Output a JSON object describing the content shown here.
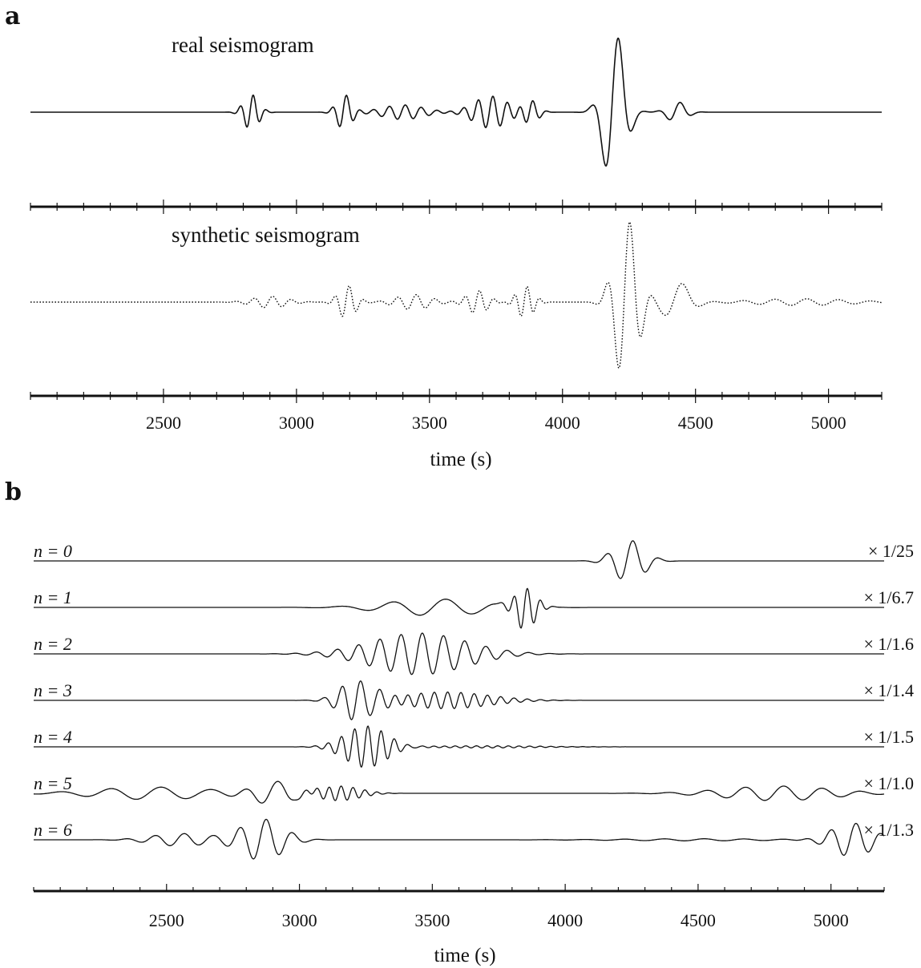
{
  "chart_data": [
    {
      "panel": "a",
      "type": "line",
      "xlabel": "time (s)",
      "xlim": [
        2000,
        5200
      ],
      "xticks": [
        2500,
        3000,
        3500,
        4000,
        4500,
        5000
      ],
      "series": [
        {
          "name": "real seismogram",
          "style": "solid",
          "packets": [
            {
              "t": 2830,
              "amp": 0.22,
              "period": 50,
              "width": 40
            },
            {
              "t": 3180,
              "amp": 0.22,
              "period": 55,
              "width": 40
            },
            {
              "t": 3400,
              "amp": 0.09,
              "period": 60,
              "width": 110
            },
            {
              "t": 3730,
              "amp": 0.2,
              "period": 55,
              "width": 90
            },
            {
              "t": 3880,
              "amp": 0.15,
              "period": 55,
              "width": 40
            },
            {
              "t": 4195,
              "amp": 1.0,
              "period": 110,
              "width": 55
            },
            {
              "t": 4430,
              "amp": 0.13,
              "period": 90,
              "width": 50
            }
          ]
        },
        {
          "name": "synthetic seismogram",
          "style": "dotted",
          "packets": [
            {
              "t": 2900,
              "amp": 0.07,
              "period": 70,
              "width": 90
            },
            {
              "t": 3190,
              "amp": 0.2,
              "period": 55,
              "width": 45
            },
            {
              "t": 3440,
              "amp": 0.09,
              "period": 70,
              "width": 90
            },
            {
              "t": 3680,
              "amp": 0.14,
              "period": 55,
              "width": 55
            },
            {
              "t": 3860,
              "amp": 0.19,
              "period": 48,
              "width": 45
            },
            {
              "t": 4240,
              "amp": 1.0,
              "period": 90,
              "width": 60
            },
            {
              "t": 4430,
              "amp": 0.24,
              "period": 150,
              "width": 70
            },
            {
              "t": 4900,
              "amp": 0.04,
              "period": 120,
              "width": 250
            }
          ]
        }
      ]
    },
    {
      "panel": "b",
      "type": "line",
      "xlabel": "time (s)",
      "xlim": [
        2000,
        5200
      ],
      "xticks": [
        2500,
        3000,
        3500,
        4000,
        4500,
        5000
      ],
      "series": [
        {
          "name": "n = 0",
          "scale": "× 1/25",
          "packets": [
            {
              "t": 4240,
              "amp": 1.0,
              "period": 100,
              "width": 80
            }
          ]
        },
        {
          "name": "n = 1",
          "scale": "× 1/6.7",
          "packets": [
            {
              "t": 3520,
              "amp": 0.4,
              "period": 200,
              "width": 260
            },
            {
              "t": 3850,
              "amp": 1.0,
              "period": 50,
              "width": 55
            }
          ]
        },
        {
          "name": "n = 2",
          "scale": "× 1/1.6",
          "packets": [
            {
              "t": 3450,
              "amp": 1.0,
              "period": 80,
              "width": 250
            }
          ]
        },
        {
          "name": "n = 3",
          "scale": "× 1/1.4",
          "packets": [
            {
              "t": 3220,
              "amp": 1.0,
              "period": 70,
              "width": 90
            },
            {
              "t": 3550,
              "amp": 0.4,
              "period": 50,
              "width": 230
            }
          ]
        },
        {
          "name": "n = 4",
          "scale": "× 1/1.5",
          "packets": [
            {
              "t": 3250,
              "amp": 1.0,
              "period": 50,
              "width": 110
            },
            {
              "t": 3700,
              "amp": 0.05,
              "period": 40,
              "width": 300
            }
          ]
        },
        {
          "name": "n = 5",
          "scale": "× 1/1.0",
          "packets": [
            {
              "t": 2900,
              "amp": 0.6,
              "period": 130,
              "width": 110
            },
            {
              "t": 3150,
              "amp": 0.35,
              "period": 45,
              "width": 110
            },
            {
              "t": 2450,
              "amp": 0.3,
              "period": 190,
              "width": 300
            },
            {
              "t": 4800,
              "amp": 0.35,
              "period": 145,
              "width": 280
            }
          ]
        },
        {
          "name": "n = 6",
          "scale": "× 1/1.3",
          "packets": [
            {
              "t": 2860,
              "amp": 1.0,
              "period": 100,
              "width": 110
            },
            {
              "t": 2550,
              "amp": 0.3,
              "period": 110,
              "width": 150
            },
            {
              "t": 5080,
              "amp": 0.8,
              "period": 95,
              "width": 110
            },
            {
              "t": 4500,
              "amp": 0.05,
              "period": 150,
              "width": 400
            }
          ]
        }
      ]
    }
  ],
  "panel_labels": {
    "a": "a",
    "b": "b"
  }
}
